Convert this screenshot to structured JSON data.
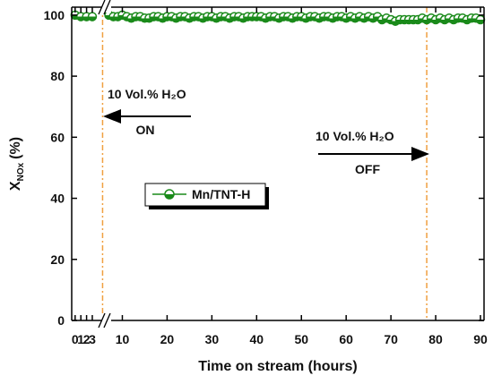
{
  "chart_data": {
    "type": "line",
    "xlabel": "Time on stream (hours)",
    "ylabel": {
      "main": "X",
      "sub": "NOx",
      "unit": "(%)"
    },
    "x_segments": [
      {
        "xlim": [
          -0.6,
          5.2
        ],
        "xticks": [
          0,
          1,
          2,
          3
        ]
      },
      {
        "xlim": [
          6.3,
          90.8
        ],
        "xticks": [
          10,
          20,
          30,
          40,
          50,
          60,
          70,
          80,
          90
        ]
      }
    ],
    "ylim": [
      0,
      102.6
    ],
    "yticks": [
      0,
      20,
      40,
      60,
      80,
      100
    ],
    "series": [
      {
        "name": "Mn/TNT-H",
        "color": "#1a8a1a",
        "x": [
          0,
          1,
          2,
          3,
          7,
          8,
          9,
          10,
          11,
          12,
          13,
          14,
          15,
          16,
          17,
          18,
          19,
          20,
          21,
          22,
          23,
          24,
          25,
          26,
          27,
          28,
          29,
          30,
          31,
          32,
          33,
          34,
          35,
          36,
          37,
          38,
          39,
          40,
          41,
          42,
          43,
          44,
          45,
          46,
          47,
          48,
          49,
          50,
          51,
          52,
          53,
          54,
          55,
          56,
          57,
          58,
          59,
          60,
          61,
          62,
          63,
          64,
          65,
          66,
          67,
          68,
          69,
          70,
          71,
          72,
          73,
          74,
          75,
          76,
          77,
          78,
          79,
          80,
          81,
          82,
          83,
          84,
          85,
          86,
          87,
          88,
          89,
          90
        ],
        "values": [
          100,
          99.5,
          99.5,
          99.5,
          100,
          99.5,
          99.5,
          100,
          99.5,
          99,
          99.5,
          99.5,
          99,
          99,
          99.5,
          99.5,
          99,
          99.5,
          99.5,
          99,
          99.5,
          99.5,
          99,
          99.5,
          99.5,
          99,
          99.5,
          99.5,
          99,
          99.5,
          99.5,
          99,
          99.5,
          99.5,
          99,
          99.5,
          99.5,
          99.5,
          99.5,
          99,
          99.5,
          99.5,
          99,
          99.5,
          99.5,
          99,
          99.5,
          99.5,
          99,
          99.5,
          99.5,
          99,
          99.5,
          99.5,
          99,
          99.5,
          99.5,
          99,
          99.5,
          99,
          99.5,
          99,
          99.5,
          99,
          99.5,
          98.5,
          99,
          98.5,
          98,
          98.5,
          98.5,
          98.5,
          98.5,
          98.5,
          99,
          98.5,
          99,
          98.5,
          99,
          98.5,
          99,
          98.5,
          99,
          99,
          98.5,
          99,
          99,
          98.5
        ]
      }
    ],
    "vlines": {
      "color": "#f0a040",
      "x": [
        4.8,
        78
      ]
    },
    "annotations": [
      {
        "text": "10 Vol.% H₂O",
        "state": "ON"
      },
      {
        "text": "10 Vol.% H₂O",
        "state": "OFF"
      }
    ]
  }
}
